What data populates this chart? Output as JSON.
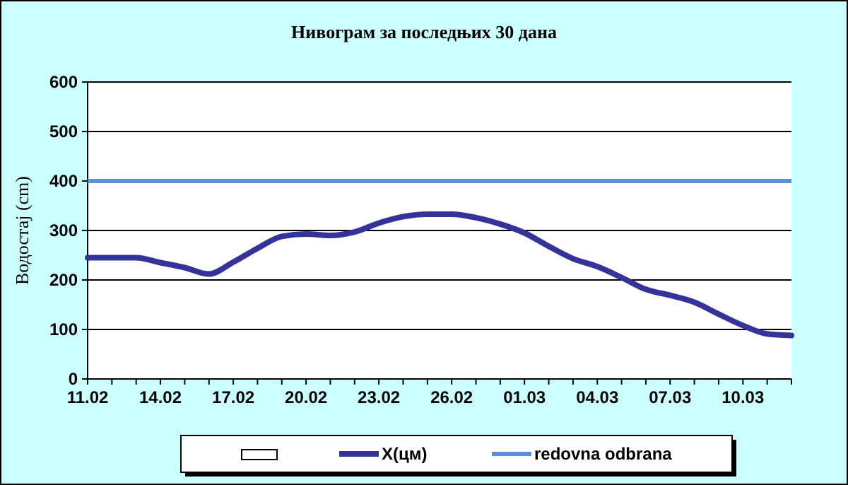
{
  "chart_data": {
    "type": "line",
    "title": "Нивограм за последњих 30 дана",
    "ylabel": "Водостај (cm)",
    "categories": [
      "11.02",
      null,
      null,
      "14.02",
      null,
      null,
      "17.02",
      null,
      null,
      "20.02",
      null,
      null,
      "23.02",
      null,
      null,
      "26.02",
      null,
      null,
      "01.03",
      null,
      null,
      "04.03",
      null,
      null,
      "07.03",
      null,
      null,
      "10.03",
      null,
      null
    ],
    "series": [
      {
        "name": "X(цм)",
        "color": "#333399",
        "values": [
          245,
          245,
          245,
          235,
          225,
          212,
          236,
          264,
          288,
          293,
          290,
          297,
          315,
          328,
          333,
          333,
          326,
          313,
          295,
          268,
          243,
          227,
          205,
          181,
          169,
          155,
          131,
          108,
          91,
          88
        ]
      }
    ],
    "ref_lines": [
      {
        "axis": "y",
        "value": 400,
        "label": "redovna odbrana",
        "color": "#5b8fdc"
      }
    ],
    "ylim": [
      0,
      600
    ],
    "yticks": [
      0,
      100,
      200,
      300,
      400,
      500,
      600
    ],
    "grid": "y",
    "legend": "bottom"
  }
}
